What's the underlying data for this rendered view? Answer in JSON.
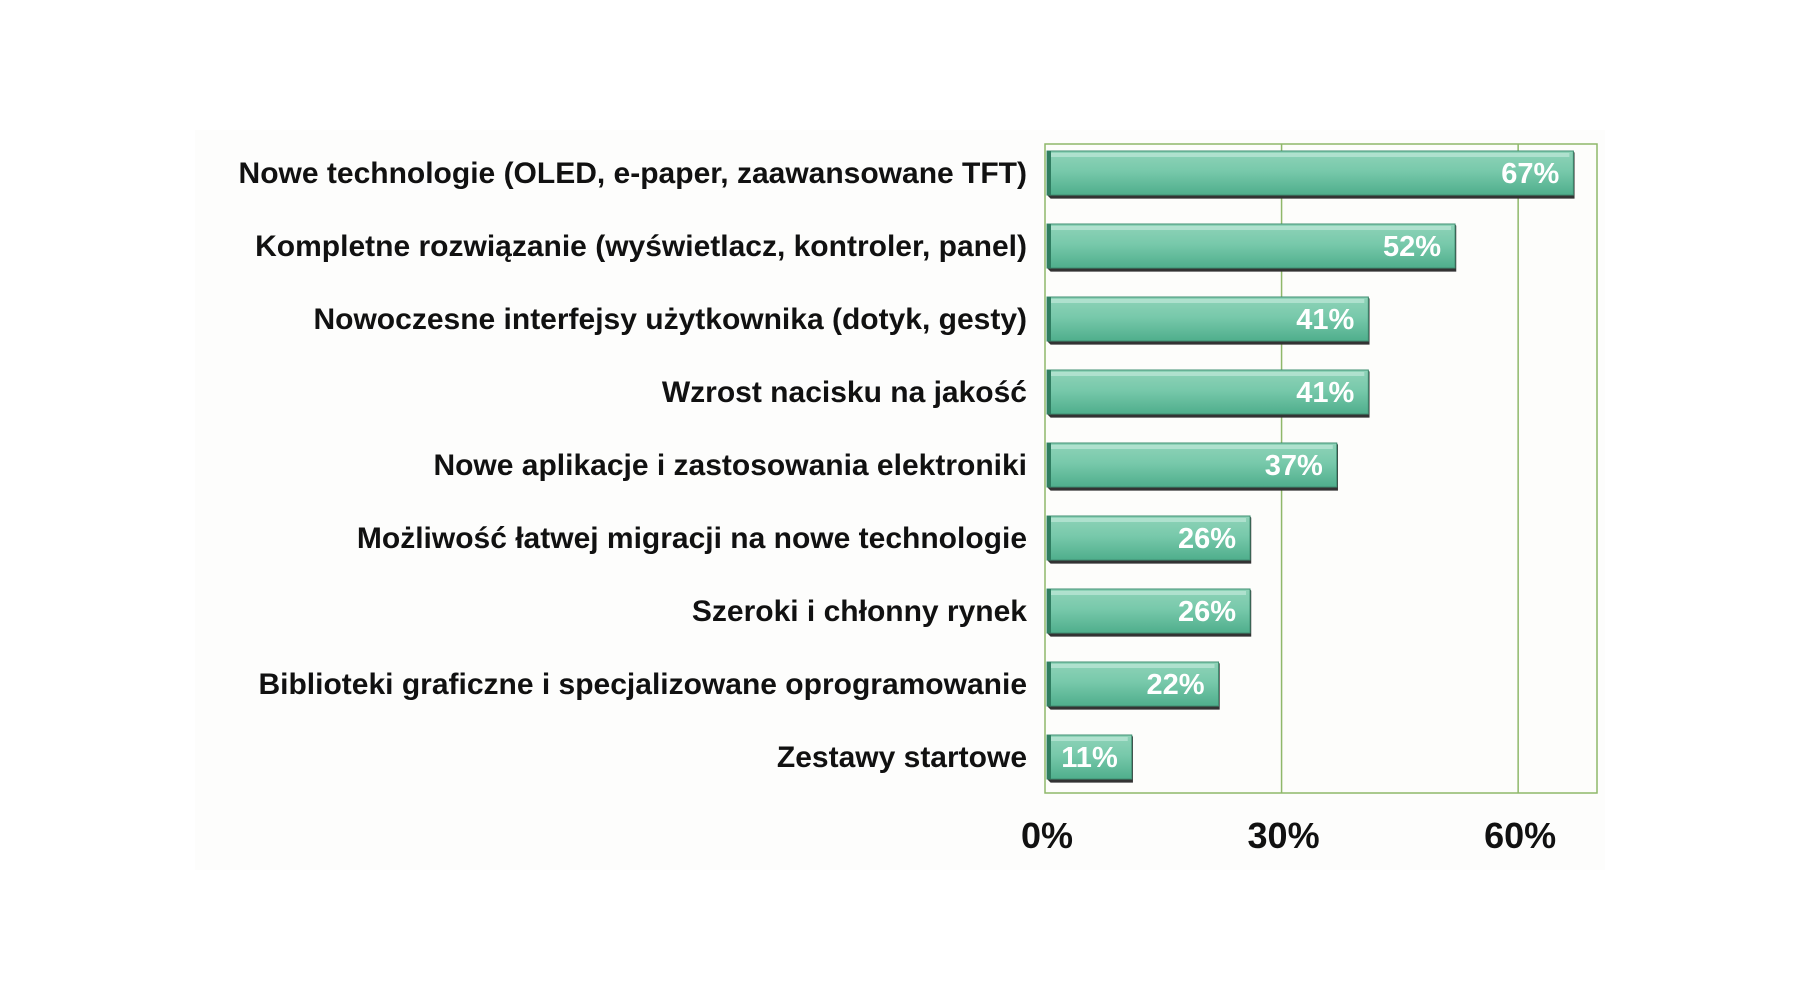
{
  "chart_data": {
    "type": "bar",
    "orientation": "horizontal",
    "title": "",
    "xlabel": "",
    "ylabel": "",
    "categories": [
      "Nowe technologie (OLED, e-paper, zaawansowane TFT)",
      "Kompletne rozwiązanie (wyświetlacz, kontroler, panel)",
      "Nowoczesne interfejsy użytkownika (dotyk, gesty)",
      "Wzrost nacisku na jakość",
      "Nowe aplikacje i zastosowania elektroniki",
      "Możliwość łatwej migracji na nowe technologie",
      "Szeroki i chłonny rynek",
      "Biblioteki graficzne i specjalizowane oprogramowanie",
      "Zestawy startowe"
    ],
    "values": [
      67,
      52,
      41,
      41,
      37,
      26,
      26,
      22,
      11
    ],
    "value_labels": [
      "67%",
      "52%",
      "41%",
      "41%",
      "37%",
      "26%",
      "26%",
      "22%",
      "11%"
    ],
    "xlim": [
      0,
      70
    ],
    "x_ticks": [
      0,
      30,
      60
    ],
    "x_tick_labels": [
      "0%",
      "30%",
      "60%"
    ],
    "grid": true,
    "legend": "none",
    "colors": {
      "bar": "#6cc4a4",
      "bar_light": "#a6dcc8",
      "bar_dark": "#3a9a7a",
      "shadow": "#333333",
      "grid": "#8fb86a",
      "plot_bg": "#fdfdfb"
    }
  }
}
